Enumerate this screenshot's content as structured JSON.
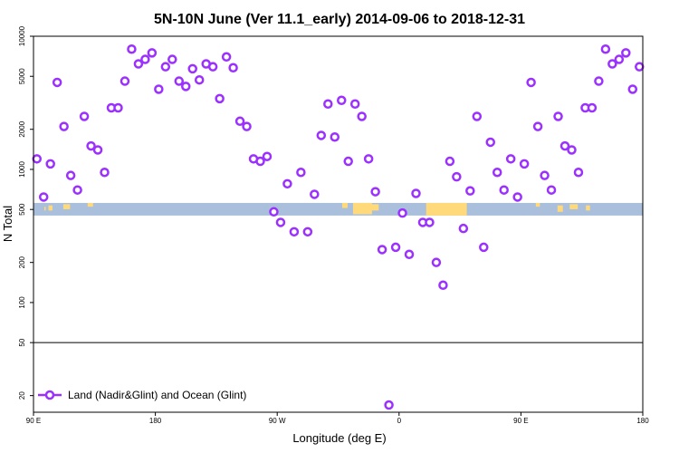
{
  "chart_data": {
    "type": "scatter",
    "title": "5N-10N June (Ver 11.1_early)   2014-09-06 to 2018-12-31",
    "xlabel": "Longitude (deg E)",
    "ylabel": "N Total",
    "x_ticks": [
      {
        "value": 90,
        "label": "90 E"
      },
      {
        "value": 180,
        "label": "180"
      },
      {
        "value": 270,
        "label": "90 W"
      },
      {
        "value": 360,
        "label": "0"
      },
      {
        "value": 450,
        "label": "90 E"
      },
      {
        "value": 540,
        "label": "180"
      }
    ],
    "xlim": [
      90,
      540
    ],
    "y_scale": "log",
    "y_ticks": [
      {
        "value": 10000,
        "label": "10000"
      },
      {
        "value": 5000,
        "label": "5000"
      },
      {
        "value": 2000,
        "label": "2000"
      },
      {
        "value": 1000,
        "label": "1000"
      },
      {
        "value": 500,
        "label": "500"
      },
      {
        "value": 200,
        "label": "200"
      },
      {
        "value": 100,
        "label": "100"
      },
      {
        "value": 50,
        "label": "50"
      },
      {
        "value": 20,
        "label": "20"
      }
    ],
    "ylim": [
      15,
      10000
    ],
    "reference_line": 50,
    "map_strip": {
      "y_range": [
        450,
        560
      ],
      "ocean_color": "#a9bfdc",
      "land_color": "#ffd97a"
    },
    "legend": {
      "position": "bottom-left",
      "label": "Land (Nadir&Glint) and Ocean (Glint)"
    },
    "series": [
      {
        "name": "Land (Nadir&Glint) and Ocean (Glint)",
        "color": "#9b30ff",
        "x": [
          92.5,
          97.5,
          102.5,
          107.5,
          112.5,
          117.5,
          122.5,
          127.5,
          132.5,
          137.5,
          142.5,
          147.5,
          152.5,
          157.5,
          162.5,
          167.5,
          172.5,
          177.5,
          182.5,
          187.5,
          192.5,
          197.5,
          202.5,
          207.5,
          212.5,
          217.5,
          222.5,
          227.5,
          232.5,
          237.5,
          242.5,
          247.5,
          252.5,
          257.5,
          262.5,
          267.5,
          272.5,
          277.5,
          282.5,
          287.5,
          292.5,
          297.5,
          302.5,
          307.5,
          312.5,
          317.5,
          322.5,
          327.5,
          332.5,
          337.5,
          342.5,
          347.5,
          352.5,
          357.5,
          362.5,
          367.5,
          372.5,
          377.5,
          382.5,
          387.5,
          392.5,
          397.5,
          402.5,
          407.5,
          412.5,
          417.5,
          422.5,
          427.5,
          432.5,
          437.5,
          442.5,
          447.5,
          452.5,
          457.5,
          462.5,
          467.5,
          472.5,
          477.5,
          482.5,
          487.5,
          492.5,
          497.5,
          502.5,
          507.5,
          512.5,
          517.5,
          522.5,
          527.5,
          532.5,
          537.5
        ],
        "y": [
          1200,
          620,
          1100,
          4500,
          2100,
          900,
          700,
          2500,
          1500,
          1400,
          950,
          2900,
          2900,
          4600,
          8000,
          6200,
          6700,
          7500,
          4000,
          5900,
          6700,
          4600,
          4200,
          5700,
          4700,
          6200,
          5900,
          3400,
          7000,
          5800,
          2300,
          2100,
          1200,
          1150,
          1250,
          480,
          400,
          780,
          340,
          950,
          340,
          650,
          1800,
          3100,
          1750,
          3300,
          1150,
          3100,
          2500,
          1200,
          680,
          250,
          17,
          260,
          470,
          230,
          660,
          400,
          400,
          200,
          135,
          1150,
          880,
          360,
          690,
          2500,
          260,
          1600,
          950,
          700,
          1200,
          620,
          1100,
          4500,
          2100,
          900,
          700,
          2500,
          1500,
          1400,
          950,
          2900,
          2900,
          4600,
          8000,
          6200,
          6700,
          7500,
          4000,
          5900
        ]
      }
    ]
  }
}
